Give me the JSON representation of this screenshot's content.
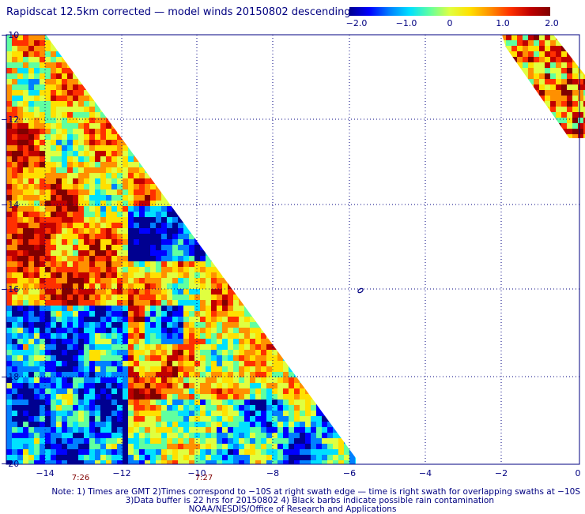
{
  "title": "Rapidscat 12.5km corrected — model winds 20150802 descending",
  "colorbar": {
    "tick_labels": [
      "−2.0",
      "−1.0",
      "0",
      "1.0",
      "2.0"
    ],
    "min": -2.0,
    "max": 2.0,
    "colors": [
      "#000090",
      "#0000ff",
      "#0080ff",
      "#00e0ff",
      "#60ffa0",
      "#e0ff40",
      "#ffe000",
      "#ff9000",
      "#ff3000",
      "#c00000",
      "#800000"
    ]
  },
  "axes": {
    "x_ticks": [
      "−14",
      "−12",
      "−10",
      "−8",
      "−6",
      "−4",
      "−2",
      "0"
    ],
    "y_ticks": [
      "−10",
      "−12",
      "−14",
      "−16",
      "−18",
      "−20"
    ],
    "lon_range": [
      -15,
      0
    ],
    "lat_range": [
      -20,
      -10
    ]
  },
  "time_labels": [
    "7:26",
    "7:27"
  ],
  "notes": [
    "Note: 1) Times are GMT 2)Times correspond to −10S at right swath edge — time is right swath for overlapping swaths at −10S",
    "3)Data buffer is 22 hrs for 20150802 4) Black barbs indicate possible rain contamination",
    "NOAA/NESDIS/Office of Research and Applications"
  ]
}
